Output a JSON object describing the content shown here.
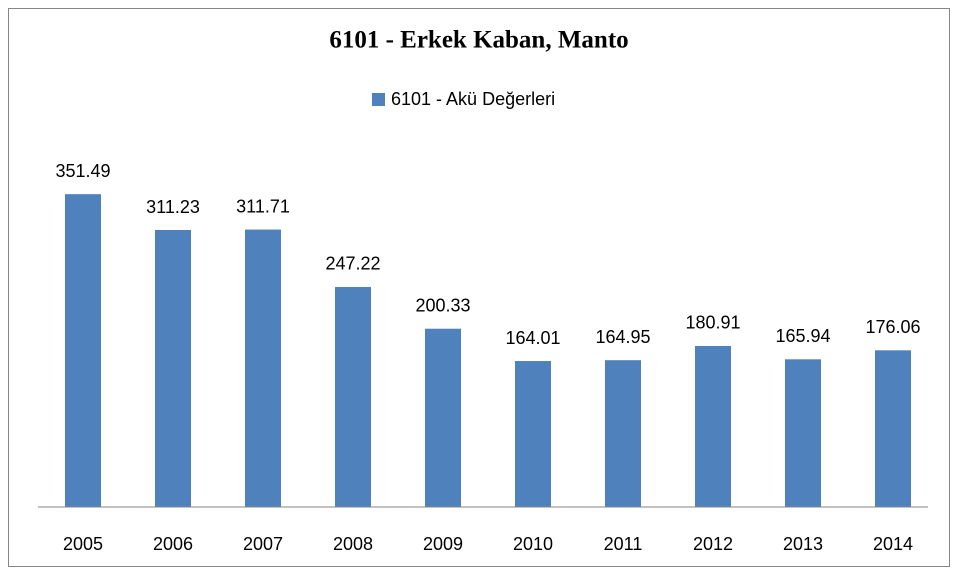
{
  "chart_data": {
    "type": "bar",
    "title": "6101 - Erkek Kaban, Manto",
    "categories": [
      "2005",
      "2006",
      "2007",
      "2008",
      "2009",
      "2010",
      "2011",
      "2012",
      "2013",
      "2014"
    ],
    "series": [
      {
        "name": "6101 - Akü Değerleri",
        "color": "#4f81bd",
        "values": [
          351.49,
          311.23,
          311.71,
          247.22,
          200.33,
          164.01,
          164.95,
          180.91,
          165.94,
          176.06
        ]
      }
    ],
    "ylim": [
      0,
      400
    ],
    "legend": "top"
  }
}
